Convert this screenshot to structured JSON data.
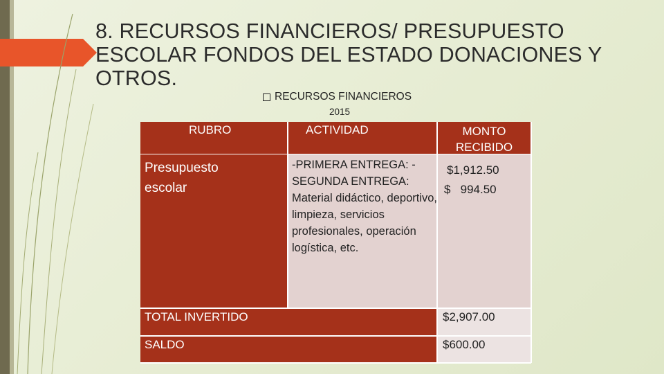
{
  "slide": {
    "title": "8. RECURSOS FINANCIEROS/ PRESUPUESTO ESCOLAR FONDOS DEL ESTADO DONACIONES Y OTROS.",
    "bullet": "RECURSOS FINANCIEROS",
    "year": "2015"
  },
  "table": {
    "headers": {
      "rubro": "RUBRO",
      "actividad": "ACTIVIDAD",
      "monto": "MONTO RECIBIDO"
    },
    "row": {
      "rubro": "Presupuesto escolar",
      "actividad": "-PRIMERA ENTREGA: -SEGUNDA ENTREGA: Material didáctico, deportivo, limpieza, servicios profesionales, operación logística, etc.",
      "monto_1": "$1,912.50",
      "monto_2": "$   994.50"
    },
    "total": {
      "label": "TOTAL INVERTIDO",
      "value": "$2,907.00"
    },
    "saldo": {
      "label": "SALDO",
      "value": "$600.00"
    }
  },
  "colors": {
    "header_red": "#a5311a",
    "accent_orange": "#e8552a",
    "cell_pink": "#e3d2d0"
  }
}
